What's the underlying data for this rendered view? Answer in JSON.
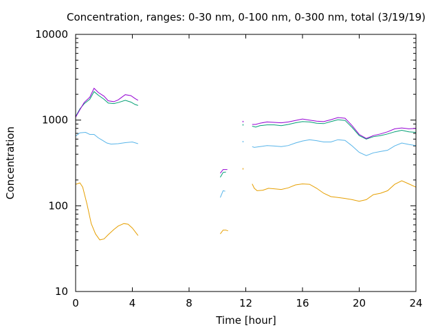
{
  "chart_data": {
    "type": "line",
    "title": "Concentration, ranges: 0-30 nm, 0-100 nm, 0-300 nm, total (3/19/19)",
    "xlabel": "Time [hour]",
    "ylabel": "Concentration",
    "xlim": [
      0,
      24
    ],
    "ylim": [
      10,
      10000
    ],
    "yscale": "log",
    "grid": false,
    "legend": "none",
    "x_ticks": [
      0,
      4,
      8,
      12,
      16,
      20,
      24
    ],
    "y_ticks": [
      10,
      100,
      1000,
      10000
    ],
    "x_tick_labels": [
      "0",
      "4",
      "8",
      "12",
      "16",
      "20",
      "24"
    ],
    "y_tick_labels": [
      "10",
      "100",
      "1000",
      "10000"
    ],
    "series": [
      {
        "color": "#e69f00",
        "segments": [
          [
            [
              0,
              178
            ],
            [
              0.3,
              185
            ],
            [
              0.5,
              165
            ],
            [
              0.8,
              105
            ],
            [
              1.1,
              62
            ],
            [
              1.4,
              47
            ],
            [
              1.7,
              40
            ],
            [
              2.0,
              41
            ],
            [
              2.3,
              46
            ],
            [
              2.7,
              53
            ],
            [
              3.0,
              58
            ],
            [
              3.4,
              62
            ],
            [
              3.7,
              61
            ],
            [
              4.0,
              55
            ],
            [
              4.4,
              45
            ]
          ],
          [
            [
              10.2,
              47
            ],
            [
              10.4,
              52
            ],
            [
              10.6,
              52
            ],
            [
              10.75,
              51
            ]
          ],
          [
            [
              12.45,
              180
            ],
            [
              12.6,
              160
            ],
            [
              12.8,
              150
            ],
            [
              13.2,
              152
            ],
            [
              13.6,
              160
            ],
            [
              14.0,
              158
            ],
            [
              14.5,
              155
            ],
            [
              15.0,
              162
            ],
            [
              15.5,
              175
            ],
            [
              16.0,
              180
            ],
            [
              16.5,
              178
            ],
            [
              17.0,
              160
            ],
            [
              17.5,
              140
            ],
            [
              18.0,
              128
            ],
            [
              18.5,
              125
            ],
            [
              19.0,
              122
            ],
            [
              19.5,
              118
            ],
            [
              20.0,
              113
            ],
            [
              20.5,
              118
            ],
            [
              21.0,
              135
            ],
            [
              21.5,
              140
            ],
            [
              22.0,
              150
            ],
            [
              22.5,
              178
            ],
            [
              23.0,
              196
            ],
            [
              23.5,
              180
            ],
            [
              24.0,
              165
            ]
          ]
        ]
      },
      {
        "color": "#56b4e9",
        "segments": [
          [
            [
              0,
              650
            ],
            [
              0.3,
              710
            ],
            [
              0.7,
              720
            ],
            [
              1.0,
              680
            ],
            [
              1.3,
              680
            ],
            [
              1.6,
              620
            ],
            [
              1.9,
              580
            ],
            [
              2.2,
              540
            ],
            [
              2.5,
              525
            ],
            [
              3.0,
              530
            ],
            [
              3.5,
              545
            ],
            [
              4.0,
              555
            ],
            [
              4.4,
              530
            ]
          ],
          [
            [
              10.2,
              125
            ],
            [
              10.4,
              150
            ],
            [
              10.55,
              148
            ]
          ],
          [
            [
              12.45,
              490
            ],
            [
              12.6,
              480
            ],
            [
              13.0,
              490
            ],
            [
              13.5,
              505
            ],
            [
              14.0,
              498
            ],
            [
              14.5,
              490
            ],
            [
              15.0,
              505
            ],
            [
              15.5,
              540
            ],
            [
              16.0,
              570
            ],
            [
              16.5,
              590
            ],
            [
              17.0,
              575
            ],
            [
              17.5,
              555
            ],
            [
              18.0,
              555
            ],
            [
              18.5,
              590
            ],
            [
              19.0,
              580
            ],
            [
              19.5,
              500
            ],
            [
              20.0,
              420
            ],
            [
              20.5,
              385
            ],
            [
              21.0,
              415
            ],
            [
              21.5,
              430
            ],
            [
              22.0,
              445
            ],
            [
              22.5,
              500
            ],
            [
              23.0,
              540
            ],
            [
              23.5,
              520
            ],
            [
              24.0,
              505
            ]
          ]
        ]
      },
      {
        "color": "#009e73",
        "segments": [
          [
            [
              0,
              1100
            ],
            [
              0.3,
              1350
            ],
            [
              0.6,
              1550
            ],
            [
              1.0,
              1750
            ],
            [
              1.3,
              2150
            ],
            [
              1.6,
              1950
            ],
            [
              2.0,
              1750
            ],
            [
              2.3,
              1580
            ],
            [
              2.7,
              1560
            ],
            [
              3.0,
              1600
            ],
            [
              3.5,
              1700
            ],
            [
              3.9,
              1620
            ],
            [
              4.2,
              1520
            ],
            [
              4.4,
              1480
            ]
          ],
          [
            [
              10.2,
              215
            ],
            [
              10.4,
              245
            ],
            [
              10.6,
              248
            ]
          ],
          [
            [
              12.45,
              850
            ],
            [
              12.7,
              830
            ],
            [
              13.0,
              860
            ],
            [
              13.5,
              880
            ],
            [
              14.0,
              880
            ],
            [
              14.5,
              860
            ],
            [
              15.0,
              890
            ],
            [
              15.5,
              930
            ],
            [
              16.0,
              960
            ],
            [
              16.5,
              950
            ],
            [
              17.0,
              920
            ],
            [
              17.5,
              910
            ],
            [
              18.0,
              960
            ],
            [
              18.5,
              1010
            ],
            [
              19.0,
              990
            ],
            [
              19.5,
              820
            ],
            [
              20.0,
              660
            ],
            [
              20.5,
              600
            ],
            [
              21.0,
              640
            ],
            [
              21.5,
              660
            ],
            [
              22.0,
              690
            ],
            [
              22.5,
              730
            ],
            [
              23.0,
              760
            ],
            [
              23.5,
              730
            ],
            [
              24.0,
              720
            ]
          ]
        ]
      },
      {
        "color": "#9400d3",
        "segments": [
          [
            [
              0,
              1080
            ],
            [
              0.3,
              1320
            ],
            [
              0.6,
              1600
            ],
            [
              1.0,
              1850
            ],
            [
              1.3,
              2350
            ],
            [
              1.6,
              2100
            ],
            [
              2.0,
              1900
            ],
            [
              2.3,
              1680
            ],
            [
              2.7,
              1640
            ],
            [
              3.0,
              1720
            ],
            [
              3.5,
              1980
            ],
            [
              3.9,
              1930
            ],
            [
              4.2,
              1780
            ],
            [
              4.4,
              1700
            ]
          ],
          [
            [
              10.2,
              240
            ],
            [
              10.4,
              265
            ],
            [
              10.7,
              265
            ]
          ],
          [
            [
              12.45,
              890
            ],
            [
              12.7,
              890
            ],
            [
              13.0,
              920
            ],
            [
              13.5,
              950
            ],
            [
              14.0,
              940
            ],
            [
              14.5,
              930
            ],
            [
              15.0,
              950
            ],
            [
              15.5,
              990
            ],
            [
              16.0,
              1030
            ],
            [
              16.5,
              1000
            ],
            [
              17.0,
              970
            ],
            [
              17.5,
              960
            ],
            [
              18.0,
              1010
            ],
            [
              18.5,
              1070
            ],
            [
              19.0,
              1050
            ],
            [
              19.5,
              860
            ],
            [
              20.0,
              680
            ],
            [
              20.5,
              610
            ],
            [
              21.0,
              660
            ],
            [
              21.5,
              690
            ],
            [
              22.0,
              730
            ],
            [
              22.5,
              790
            ],
            [
              23.0,
              810
            ],
            [
              23.5,
              790
            ],
            [
              24.0,
              800
            ]
          ]
        ]
      }
    ],
    "stray_points": [
      {
        "color": "#e69f00",
        "x": 11.8,
        "y": 270
      },
      {
        "color": "#56b4e9",
        "x": 11.8,
        "y": 560
      },
      {
        "color": "#009e73",
        "x": 11.8,
        "y": 880
      },
      {
        "color": "#9400d3",
        "x": 11.8,
        "y": 960
      }
    ]
  }
}
